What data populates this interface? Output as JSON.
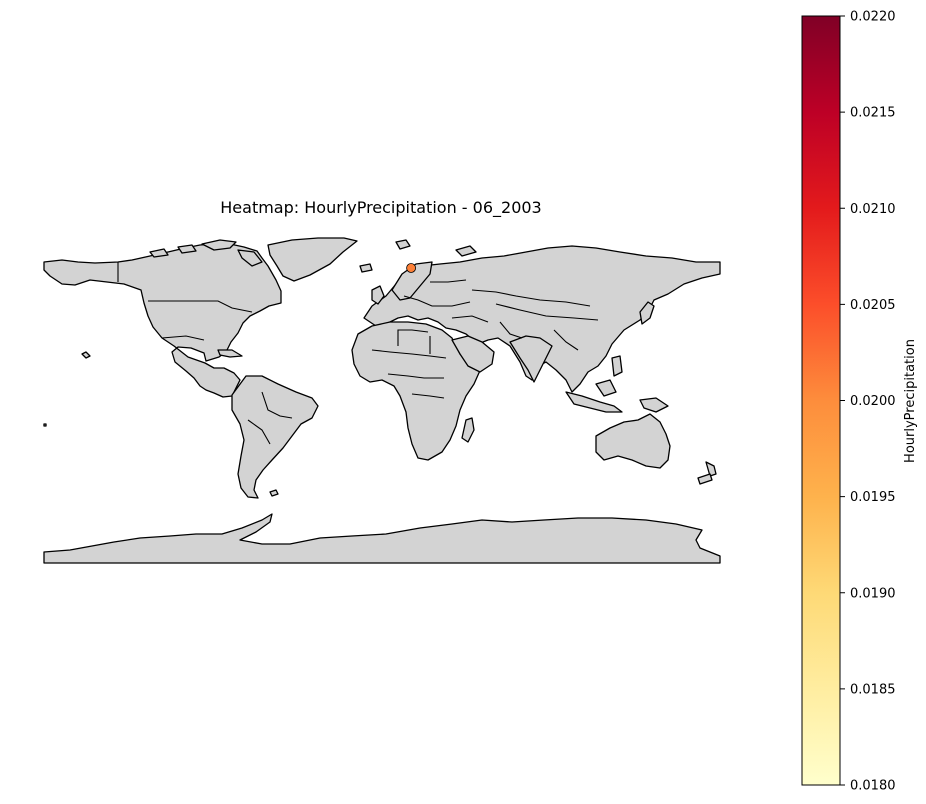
{
  "chart_data": {
    "type": "heatmap",
    "title": "Heatmap: HourlyPrecipitation - 06_2003",
    "colorbar": {
      "label": "HourlyPrecipitation",
      "vmin": 0.018,
      "vmax": 0.022,
      "ticks": [
        0.018,
        0.0185,
        0.019,
        0.0195,
        0.02,
        0.0205,
        0.021,
        0.0215,
        0.022
      ],
      "tick_labels": [
        "0.0180",
        "0.0185",
        "0.0190",
        "0.0195",
        "0.0200",
        "0.0205",
        "0.0210",
        "0.0215",
        "0.0220"
      ],
      "colormap": "YlOrRd",
      "colors": [
        "#ffffcc",
        "#ffeda0",
        "#fed976",
        "#feb24c",
        "#fd8d3c",
        "#fc4e2a",
        "#e31a1c",
        "#bd0026",
        "#800026"
      ]
    },
    "points": [
      {
        "lon": 15.5,
        "lat": 78.2,
        "value": 0.0201
      }
    ],
    "map": {
      "projection": "PlateCarree",
      "land_color": "#d3d3d3",
      "border_color": "#000000"
    }
  }
}
